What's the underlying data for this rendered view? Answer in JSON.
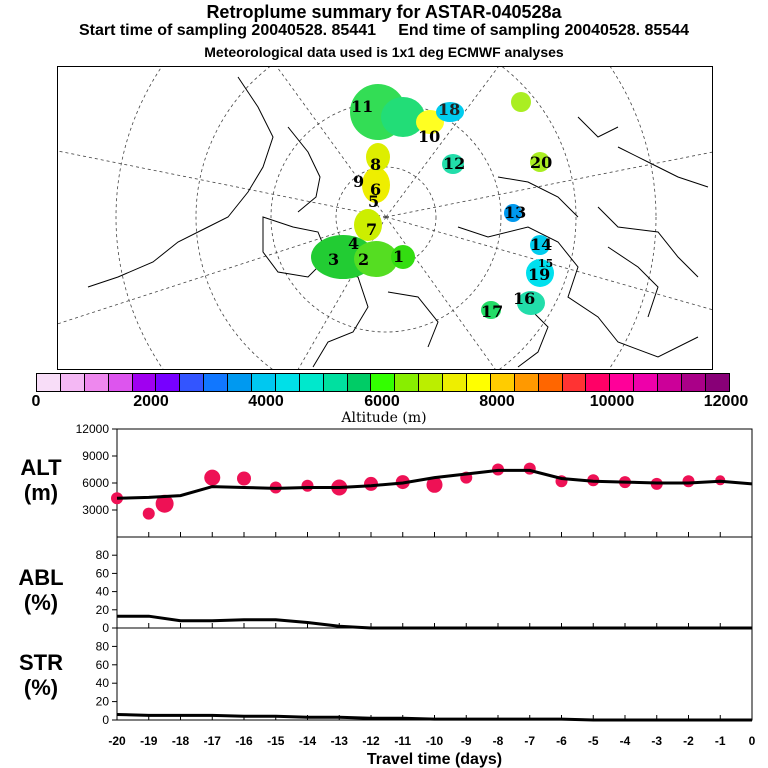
{
  "header": {
    "title": "Retroplume summary for ASTAR-040528a",
    "sampling_line": "Start time of sampling 20040528. 85441     End time of sampling 20040528. 85544",
    "met_line": "Meteorological data used is 1x1 deg ECMWF analyses"
  },
  "map": {
    "plume_labels": [
      {
        "text": "1",
        "color": "#22cc22"
      },
      {
        "text": "2",
        "color": "#22cc22"
      },
      {
        "text": "3",
        "color": "#22cc22"
      },
      {
        "text": "4",
        "color": "#22cc22"
      },
      {
        "text": "5",
        "color": "#bbee00"
      },
      {
        "text": "6",
        "color": "#ccee00"
      },
      {
        "text": "7",
        "color": "#ccee00"
      },
      {
        "text": "8",
        "color": "#eeee00"
      },
      {
        "text": "9",
        "color": "#ccee00"
      },
      {
        "text": "10",
        "color": "#eeee22"
      },
      {
        "text": "11",
        "color": "#22dd44"
      },
      {
        "text": "12",
        "color": "#22ddaa"
      },
      {
        "text": "13",
        "color": "#00aadd"
      },
      {
        "text": "14",
        "color": "#00ccee"
      },
      {
        "text": "15",
        "color": "#00ddee"
      },
      {
        "text": "16",
        "color": "#22ddaa"
      },
      {
        "text": "17",
        "color": "#22dd66"
      },
      {
        "text": "18",
        "color": "#00ddee"
      },
      {
        "text": "19",
        "color": "#aaee22"
      },
      {
        "text": "20",
        "color": "#aaee22"
      }
    ]
  },
  "colorbar": {
    "colors": [
      "#f8ddf8",
      "#f4b8f4",
      "#ee88ee",
      "#dd55ee",
      "#a000f0",
      "#7700ff",
      "#3355ff",
      "#1177ff",
      "#0099f0",
      "#00c8f0",
      "#00e0e8",
      "#00e8cc",
      "#00e0a0",
      "#00cc66",
      "#33ff00",
      "#88ee00",
      "#bbee00",
      "#eeee00",
      "#ffff00",
      "#ffcc00",
      "#ff9900",
      "#ff6600",
      "#ff3333",
      "#ff0066",
      "#ff0099",
      "#ee00aa",
      "#cc0099",
      "#aa0088",
      "#880077"
    ],
    "ticks": [
      "0",
      "2000",
      "4000",
      "6000",
      "8000",
      "10000",
      "12000"
    ],
    "title": "Altitude (m)"
  },
  "panels": {
    "alt": {
      "label": "ALT\n(m)",
      "yticks": [
        "12000",
        "9000",
        "6000",
        "3000"
      ]
    },
    "abl": {
      "label": "ABL\n(%)",
      "yticks": [
        "80",
        "60",
        "40",
        "20",
        "0"
      ]
    },
    "str": {
      "label": "STR\n(%)",
      "yticks": [
        "80",
        "60",
        "40",
        "20",
        "0"
      ]
    },
    "xticks": [
      "-20",
      "-19",
      "-18",
      "-17",
      "-16",
      "-15",
      "-14",
      "-13",
      "-12",
      "-11",
      "-10",
      "-9",
      "-8",
      "-7",
      "-6",
      "-5",
      "-4",
      "-3",
      "-2",
      "-1",
      "0"
    ],
    "xlabel": "Travel time (days)"
  },
  "chart_data": [
    {
      "type": "line+scatter",
      "title": "ALT",
      "xlabel": "Travel time (days)",
      "ylabel": "ALT (m)",
      "xlim": [
        -20,
        0
      ],
      "ylim": [
        0,
        12000
      ],
      "line": {
        "x": [
          -20,
          -19,
          -18,
          -17,
          -16,
          -15,
          -14,
          -13,
          -12,
          -11,
          -10,
          -9,
          -8,
          -7,
          -6,
          -5,
          -4,
          -3,
          -2,
          -1,
          0
        ],
        "y": [
          4300,
          4400,
          4600,
          5600,
          5500,
          5400,
          5500,
          5500,
          5700,
          6000,
          6600,
          7000,
          7400,
          7400,
          6500,
          6200,
          6100,
          6000,
          6000,
          6200,
          5900
        ]
      },
      "points": {
        "color": "#ee1155",
        "x": [
          -20,
          -19,
          -18.5,
          -17,
          -16,
          -15,
          -14,
          -13,
          -12,
          -11,
          -10,
          -9,
          -8,
          -7,
          -6,
          -5,
          -4,
          -3,
          -2,
          -1
        ],
        "y": [
          4300,
          2600,
          3700,
          6600,
          6500,
          5500,
          5700,
          5500,
          5900,
          6100,
          5800,
          6600,
          7500,
          7600,
          6200,
          6300,
          6100,
          5900,
          6200,
          6300
        ],
        "size": [
          6,
          6,
          9,
          8,
          7,
          6,
          6,
          8,
          7,
          7,
          8,
          6,
          6,
          6,
          6,
          6,
          6,
          6,
          6,
          5
        ]
      }
    },
    {
      "type": "line",
      "title": "ABL",
      "ylabel": "ABL (%)",
      "xlim": [
        -20,
        0
      ],
      "ylim": [
        0,
        100
      ],
      "x": [
        -20,
        -19,
        -18,
        -17,
        -16,
        -15,
        -14,
        -13,
        -12,
        -11,
        -10,
        -9,
        -8,
        -7,
        -6,
        -5,
        -4,
        -3,
        -2,
        -1,
        0
      ],
      "y": [
        13,
        13,
        8,
        8,
        9,
        9,
        6,
        2,
        0,
        0,
        0,
        0,
        0,
        0,
        0,
        0,
        0,
        0,
        0,
        0,
        0
      ]
    },
    {
      "type": "line",
      "title": "STR",
      "ylabel": "STR (%)",
      "xlim": [
        -20,
        0
      ],
      "ylim": [
        0,
        100
      ],
      "x": [
        -20,
        -19,
        -18,
        -17,
        -16,
        -15,
        -14,
        -13,
        -12,
        -11,
        -10,
        -9,
        -8,
        -7,
        -6,
        -5,
        -4,
        -3,
        -2,
        -1,
        0
      ],
      "y": [
        6,
        5,
        5,
        5,
        4,
        4,
        3,
        3,
        2,
        2,
        1,
        1,
        1,
        1,
        1,
        0,
        0,
        0,
        0,
        0,
        0
      ]
    }
  ]
}
